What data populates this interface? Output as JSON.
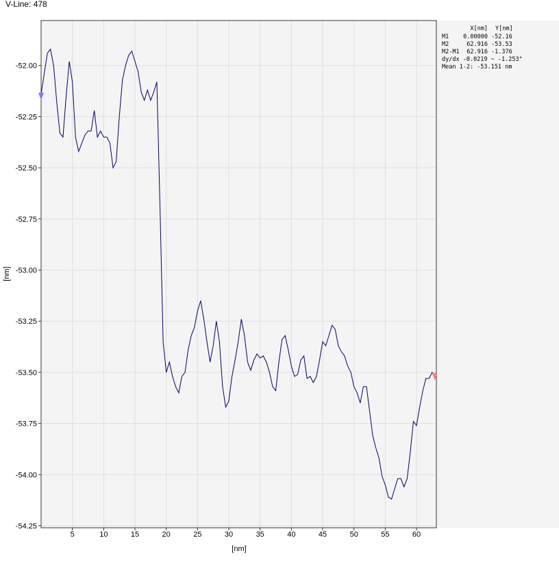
{
  "chart_data": {
    "type": "line",
    "title": "V-Line: 478",
    "x_label": "[nm]",
    "y_label": "[nm]",
    "x": [
      0,
      0.5,
      1,
      1.5,
      2,
      2.5,
      3,
      3.5,
      4,
      4.5,
      5,
      5.5,
      6,
      6.5,
      7,
      7.5,
      8,
      8.5,
      9,
      9.5,
      10,
      10.5,
      11,
      11.5,
      12,
      12.5,
      13,
      13.5,
      14,
      14.5,
      15,
      15.5,
      16,
      16.5,
      17,
      17.5,
      18,
      18.5,
      19,
      19.5,
      20,
      20.5,
      21,
      21.5,
      22,
      22.5,
      23,
      23.5,
      24,
      24.5,
      25,
      25.5,
      26,
      26.5,
      27,
      27.5,
      28,
      28.5,
      29,
      29.5,
      30,
      30.5,
      31,
      31.5,
      32,
      32.5,
      33,
      33.5,
      34,
      34.5,
      35,
      35.5,
      36,
      36.5,
      37,
      37.5,
      38,
      38.5,
      39,
      39.5,
      40,
      40.5,
      41,
      41.5,
      42,
      42.5,
      43,
      43.5,
      44,
      44.5,
      45,
      45.5,
      46,
      46.5,
      47,
      47.5,
      48,
      48.5,
      49,
      49.5,
      50,
      50.5,
      51,
      51.5,
      52,
      52.5,
      53,
      53.5,
      54,
      54.5,
      55,
      55.5,
      56,
      56.5,
      57,
      57.5,
      58,
      58.5,
      59,
      59.5,
      60,
      60.5,
      61,
      61.5,
      62,
      62.5,
      62.916
    ],
    "series": [
      {
        "name": "V-Line",
        "color": "#000066",
        "values": [
          -52.14,
          -52.04,
          -51.94,
          -51.92,
          -52.0,
          -52.18,
          -52.33,
          -52.35,
          -52.15,
          -51.98,
          -52.08,
          -52.35,
          -52.42,
          -52.38,
          -52.34,
          -52.32,
          -52.32,
          -52.22,
          -52.35,
          -52.32,
          -52.35,
          -52.35,
          -52.38,
          -52.5,
          -52.47,
          -52.25,
          -52.07,
          -52.0,
          -51.95,
          -51.93,
          -51.98,
          -52.03,
          -52.13,
          -52.17,
          -52.12,
          -52.17,
          -52.13,
          -52.08,
          -52.69,
          -53.35,
          -53.5,
          -53.45,
          -53.52,
          -53.57,
          -53.6,
          -53.52,
          -53.5,
          -53.39,
          -53.32,
          -53.28,
          -53.2,
          -53.15,
          -53.24,
          -53.35,
          -53.45,
          -53.37,
          -53.25,
          -53.35,
          -53.57,
          -53.67,
          -53.64,
          -53.52,
          -53.44,
          -53.35,
          -53.24,
          -53.32,
          -53.45,
          -53.49,
          -53.44,
          -53.41,
          -53.43,
          -53.42,
          -53.45,
          -53.5,
          -53.57,
          -53.59,
          -53.45,
          -53.34,
          -53.32,
          -53.39,
          -53.47,
          -53.52,
          -53.51,
          -53.44,
          -53.42,
          -53.53,
          -53.52,
          -53.55,
          -53.52,
          -53.44,
          -53.35,
          -53.37,
          -53.32,
          -53.27,
          -53.29,
          -53.37,
          -53.4,
          -53.42,
          -53.47,
          -53.5,
          -53.57,
          -53.6,
          -53.65,
          -53.57,
          -53.57,
          -53.69,
          -53.81,
          -53.87,
          -53.92,
          -54.01,
          -54.05,
          -54.11,
          -54.12,
          -54.07,
          -54.02,
          -54.02,
          -54.06,
          -54.02,
          -53.89,
          -53.74,
          -53.76,
          -53.67,
          -53.59,
          -53.53,
          -53.53,
          -53.5,
          -53.53
        ]
      }
    ],
    "xlim": [
      0,
      63.17
    ],
    "ylim": [
      -54.26,
      -51.78
    ],
    "xticks": [
      5,
      10,
      15,
      20,
      25,
      30,
      35,
      40,
      45,
      50,
      55,
      60
    ],
    "yticks": [
      {
        "value": -54.25,
        "label": "-54.25"
      },
      {
        "value": -54,
        "label": "-54.00"
      },
      {
        "value": -53.75,
        "label": "-53.75"
      },
      {
        "value": -53.5,
        "label": "-53.50"
      },
      {
        "value": -53.25,
        "label": "-53.25"
      },
      {
        "value": -53,
        "label": "-53.00"
      },
      {
        "value": -52.75,
        "label": "-52.75"
      },
      {
        "value": -52.5,
        "label": "-52.50"
      },
      {
        "value": -52.25,
        "label": "-52.25"
      },
      {
        "value": -52,
        "label": "-52.00"
      }
    ],
    "grid": true,
    "panel_headers": [
      "X[nm]",
      "Y[nm]"
    ],
    "markers": [
      {
        "name": "M1",
        "color": "#3333cc",
        "marker_color": "#7b7bff",
        "x": {
          "value": 0,
          "label": "0.00000"
        },
        "y": {
          "value": -52.16,
          "label": "-52.16"
        }
      },
      {
        "name": "M2",
        "color": "#e01010",
        "marker_color": "#ff7b7b",
        "x": {
          "value": 62.916,
          "label": "62.916"
        },
        "y": {
          "value": -53.53,
          "label": "-53.53"
        }
      }
    ],
    "difference": {
      "name": "M2-M1",
      "x": "62.916",
      "y": "-1.376"
    },
    "slope_text": "dy/dx -0.0219 ~ -1.253°",
    "mean_text": "Mean 1-2: -53.151 nm"
  }
}
